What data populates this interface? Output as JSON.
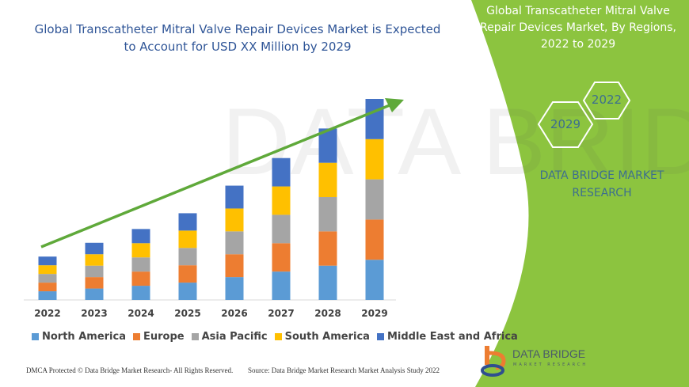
{
  "title": "Global Transcatheter Mitral Valve Repair Devices Market is Expected to Account for USD XX Million by 2029",
  "side_panel": {
    "title": "Global Transcatheter Mitral Valve Repair Devices Market, By Regions, 2022 to 2029",
    "hex_years": [
      "2022",
      "2029"
    ],
    "brand": "DATA BRIDGE MARKET RESEARCH",
    "logo_text": "DATA BRIDGE",
    "logo_sub": "MARKET RESEARCH",
    "color": "#8cc43f"
  },
  "footer": {
    "left": "DMCA Protected © Data Bridge Market Research- All Rights Reserved.",
    "right": "Source: Data Bridge Market Research Market Analysis Study 2022"
  },
  "chart_data": {
    "type": "bar",
    "stacked": true,
    "categories": [
      "2022",
      "2023",
      "2024",
      "2025",
      "2026",
      "2027",
      "2028",
      "2029"
    ],
    "series": [
      {
        "name": "North America",
        "color": "#5b9bd5",
        "values": [
          11,
          14.5,
          18,
          22,
          29,
          36,
          43.5,
          51
        ]
      },
      {
        "name": "Europe",
        "color": "#ed7d31",
        "values": [
          11,
          14.5,
          18,
          22,
          29,
          36,
          43.5,
          51
        ]
      },
      {
        "name": "Asia Pacific",
        "color": "#a5a5a5",
        "values": [
          11,
          14.5,
          18,
          22,
          29,
          36,
          43.5,
          51
        ]
      },
      {
        "name": "South America",
        "color": "#ffc000",
        "values": [
          11,
          14.5,
          18,
          22,
          29,
          36,
          43.5,
          51
        ]
      },
      {
        "name": "Middle East and Africa",
        "color": "#4472c4",
        "values": [
          11,
          14.5,
          18,
          22,
          29,
          36,
          43.5,
          51
        ]
      }
    ],
    "ylim": [
      0,
      255
    ],
    "y_axis_shown": false,
    "grid": false,
    "legend": "bottom",
    "trend_arrow_color": "#5fa93a"
  }
}
